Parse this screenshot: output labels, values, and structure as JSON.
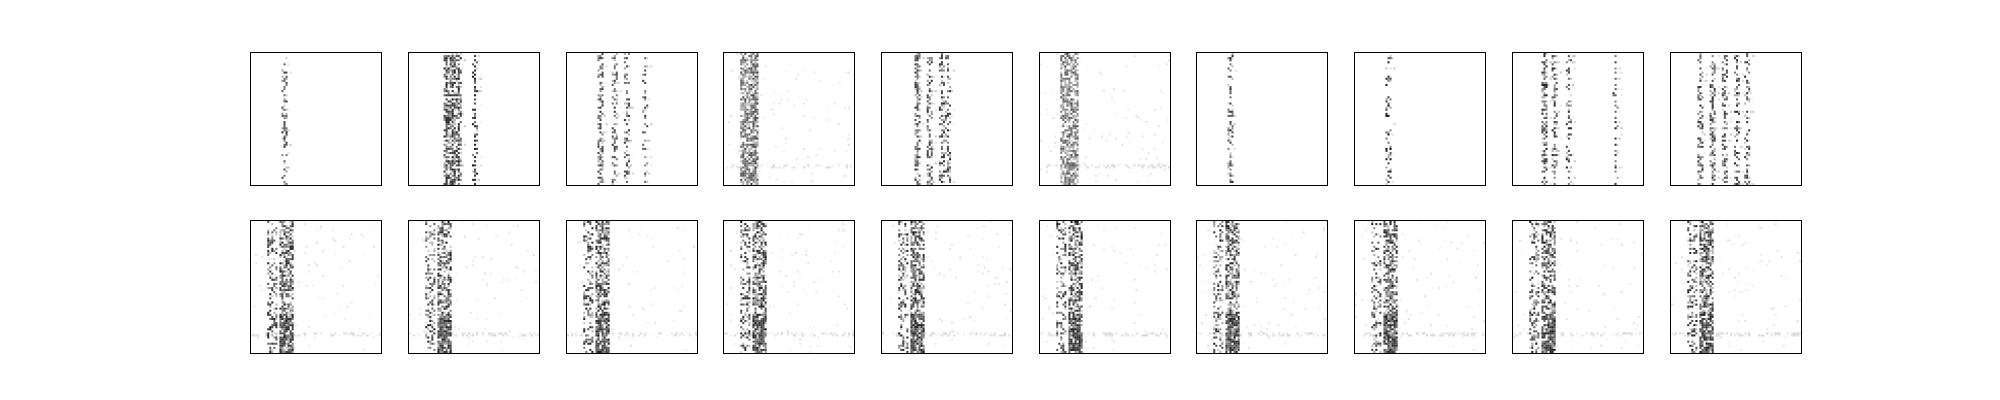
{
  "chart_data": [
    {
      "type": "heatmap",
      "row": "top",
      "pattern": "sparse-column",
      "colormap": [
        "#ffffff",
        "#000000"
      ],
      "intensity": 0.85,
      "columns": [
        {
          "pos": 0.25,
          "w": 0.02,
          "density": 0.28
        }
      ],
      "band_rows": 18
    },
    {
      "type": "heatmap",
      "row": "top",
      "pattern": "multi-column",
      "colormap": [
        "#ffffff",
        "#000000"
      ],
      "intensity": 0.9,
      "columns": [
        {
          "pos": 0.28,
          "w": 0.03,
          "density": 0.6
        },
        {
          "pos": 0.33,
          "w": 0.03,
          "density": 0.7
        },
        {
          "pos": 0.38,
          "w": 0.02,
          "density": 0.4
        },
        {
          "pos": 0.5,
          "w": 0.02,
          "density": 0.12
        }
      ],
      "band_rows": 34
    },
    {
      "type": "heatmap",
      "row": "top",
      "pattern": "sparse-rows",
      "colormap": [
        "#ffffff",
        "#000000"
      ],
      "intensity": 0.8,
      "columns": [
        {
          "pos": 0.25,
          "w": 0.03,
          "density": 0.45
        },
        {
          "pos": 0.36,
          "w": 0.02,
          "density": 0.3
        },
        {
          "pos": 0.46,
          "w": 0.02,
          "density": 0.25
        },
        {
          "pos": 0.6,
          "w": 0.02,
          "density": 0.1
        }
      ],
      "band_rows": 16
    },
    {
      "type": "heatmap",
      "row": "top",
      "pattern": "dense-band",
      "colormap": [
        "#ffffff",
        "#000000"
      ],
      "intensity": 0.75,
      "columns": [
        {
          "pos": 0.18,
          "w": 0.12,
          "density": 0.75
        }
      ],
      "band_rows": 0
    },
    {
      "type": "heatmap",
      "row": "top",
      "pattern": "sparse-rows",
      "colormap": [
        "#ffffff",
        "#000000"
      ],
      "intensity": 0.85,
      "columns": [
        {
          "pos": 0.26,
          "w": 0.03,
          "density": 0.5
        },
        {
          "pos": 0.36,
          "w": 0.02,
          "density": 0.35
        },
        {
          "pos": 0.46,
          "w": 0.02,
          "density": 0.3
        },
        {
          "pos": 0.5,
          "w": 0.02,
          "density": 0.2
        }
      ],
      "band_rows": 20
    },
    {
      "type": "heatmap",
      "row": "top",
      "pattern": "dense-band",
      "colormap": [
        "#ffffff",
        "#000000"
      ],
      "intensity": 0.7,
      "columns": [
        {
          "pos": 0.22,
          "w": 0.14,
          "density": 0.7
        }
      ],
      "band_rows": 0
    },
    {
      "type": "heatmap",
      "row": "top",
      "pattern": "sparse-column",
      "colormap": [
        "#ffffff",
        "#000000"
      ],
      "intensity": 0.85,
      "columns": [
        {
          "pos": 0.25,
          "w": 0.02,
          "density": 0.3
        }
      ],
      "band_rows": 20
    },
    {
      "type": "heatmap",
      "row": "top",
      "pattern": "sparse-column",
      "colormap": [
        "#ffffff",
        "#000000"
      ],
      "intensity": 0.95,
      "columns": [
        {
          "pos": 0.25,
          "w": 0.02,
          "density": 0.18
        }
      ],
      "band_rows": 14
    },
    {
      "type": "heatmap",
      "row": "top",
      "pattern": "multi-column",
      "colormap": [
        "#ffffff",
        "#000000"
      ],
      "intensity": 0.9,
      "columns": [
        {
          "pos": 0.24,
          "w": 0.03,
          "density": 0.45
        },
        {
          "pos": 0.32,
          "w": 0.03,
          "density": 0.3
        },
        {
          "pos": 0.42,
          "w": 0.02,
          "density": 0.15
        },
        {
          "pos": 0.78,
          "w": 0.02,
          "density": 0.04
        }
      ],
      "band_rows": 24
    },
    {
      "type": "heatmap",
      "row": "top",
      "pattern": "multi-column",
      "colormap": [
        "#ffffff",
        "#000000"
      ],
      "intensity": 0.85,
      "columns": [
        {
          "pos": 0.22,
          "w": 0.02,
          "density": 0.3
        },
        {
          "pos": 0.32,
          "w": 0.02,
          "density": 0.35
        },
        {
          "pos": 0.4,
          "w": 0.02,
          "density": 0.3
        },
        {
          "pos": 0.5,
          "w": 0.02,
          "density": 0.3
        },
        {
          "pos": 0.58,
          "w": 0.02,
          "density": 0.2
        }
      ],
      "band_rows": 22
    },
    {
      "type": "heatmap",
      "row": "bottom",
      "pattern": "cluster",
      "colormap": [
        "#ffffff",
        "#000000"
      ],
      "intensity": 0.9,
      "columns": [
        {
          "pos": 0.15,
          "w": 0.05,
          "density": 0.35
        },
        {
          "pos": 0.27,
          "w": 0.1,
          "density": 0.6
        }
      ],
      "band_rows": 0
    },
    {
      "type": "heatmap",
      "row": "bottom",
      "pattern": "cluster",
      "colormap": [
        "#ffffff",
        "#000000"
      ],
      "intensity": 0.9,
      "columns": [
        {
          "pos": 0.15,
          "w": 0.05,
          "density": 0.35
        },
        {
          "pos": 0.27,
          "w": 0.1,
          "density": 0.6
        }
      ],
      "band_rows": 0
    },
    {
      "type": "heatmap",
      "row": "bottom",
      "pattern": "cluster",
      "colormap": [
        "#ffffff",
        "#000000"
      ],
      "intensity": 0.9,
      "columns": [
        {
          "pos": 0.15,
          "w": 0.05,
          "density": 0.35
        },
        {
          "pos": 0.27,
          "w": 0.1,
          "density": 0.6
        }
      ],
      "band_rows": 0
    },
    {
      "type": "heatmap",
      "row": "bottom",
      "pattern": "cluster",
      "colormap": [
        "#ffffff",
        "#000000"
      ],
      "intensity": 0.9,
      "columns": [
        {
          "pos": 0.15,
          "w": 0.05,
          "density": 0.35
        },
        {
          "pos": 0.27,
          "w": 0.1,
          "density": 0.6
        }
      ],
      "band_rows": 0
    },
    {
      "type": "heatmap",
      "row": "bottom",
      "pattern": "cluster",
      "colormap": [
        "#ffffff",
        "#000000"
      ],
      "intensity": 0.9,
      "columns": [
        {
          "pos": 0.15,
          "w": 0.05,
          "density": 0.35
        },
        {
          "pos": 0.27,
          "w": 0.1,
          "density": 0.6
        }
      ],
      "band_rows": 0
    },
    {
      "type": "heatmap",
      "row": "bottom",
      "pattern": "cluster",
      "colormap": [
        "#ffffff",
        "#000000"
      ],
      "intensity": 0.9,
      "columns": [
        {
          "pos": 0.15,
          "w": 0.05,
          "density": 0.35
        },
        {
          "pos": 0.27,
          "w": 0.1,
          "density": 0.6
        }
      ],
      "band_rows": 0
    },
    {
      "type": "heatmap",
      "row": "bottom",
      "pattern": "cluster",
      "colormap": [
        "#ffffff",
        "#000000"
      ],
      "intensity": 0.9,
      "columns": [
        {
          "pos": 0.15,
          "w": 0.05,
          "density": 0.35
        },
        {
          "pos": 0.27,
          "w": 0.1,
          "density": 0.6
        }
      ],
      "band_rows": 0
    },
    {
      "type": "heatmap",
      "row": "bottom",
      "pattern": "cluster",
      "colormap": [
        "#ffffff",
        "#000000"
      ],
      "intensity": 0.9,
      "columns": [
        {
          "pos": 0.15,
          "w": 0.05,
          "density": 0.35
        },
        {
          "pos": 0.27,
          "w": 0.1,
          "density": 0.6
        }
      ],
      "band_rows": 0
    },
    {
      "type": "heatmap",
      "row": "bottom",
      "pattern": "cluster",
      "colormap": [
        "#ffffff",
        "#000000"
      ],
      "intensity": 0.9,
      "columns": [
        {
          "pos": 0.15,
          "w": 0.05,
          "density": 0.35
        },
        {
          "pos": 0.27,
          "w": 0.1,
          "density": 0.6
        }
      ],
      "band_rows": 0
    },
    {
      "type": "heatmap",
      "row": "bottom",
      "pattern": "cluster",
      "colormap": [
        "#ffffff",
        "#000000"
      ],
      "intensity": 0.9,
      "columns": [
        {
          "pos": 0.15,
          "w": 0.05,
          "density": 0.35
        },
        {
          "pos": 0.27,
          "w": 0.1,
          "density": 0.6
        }
      ],
      "band_rows": 0
    }
  ]
}
